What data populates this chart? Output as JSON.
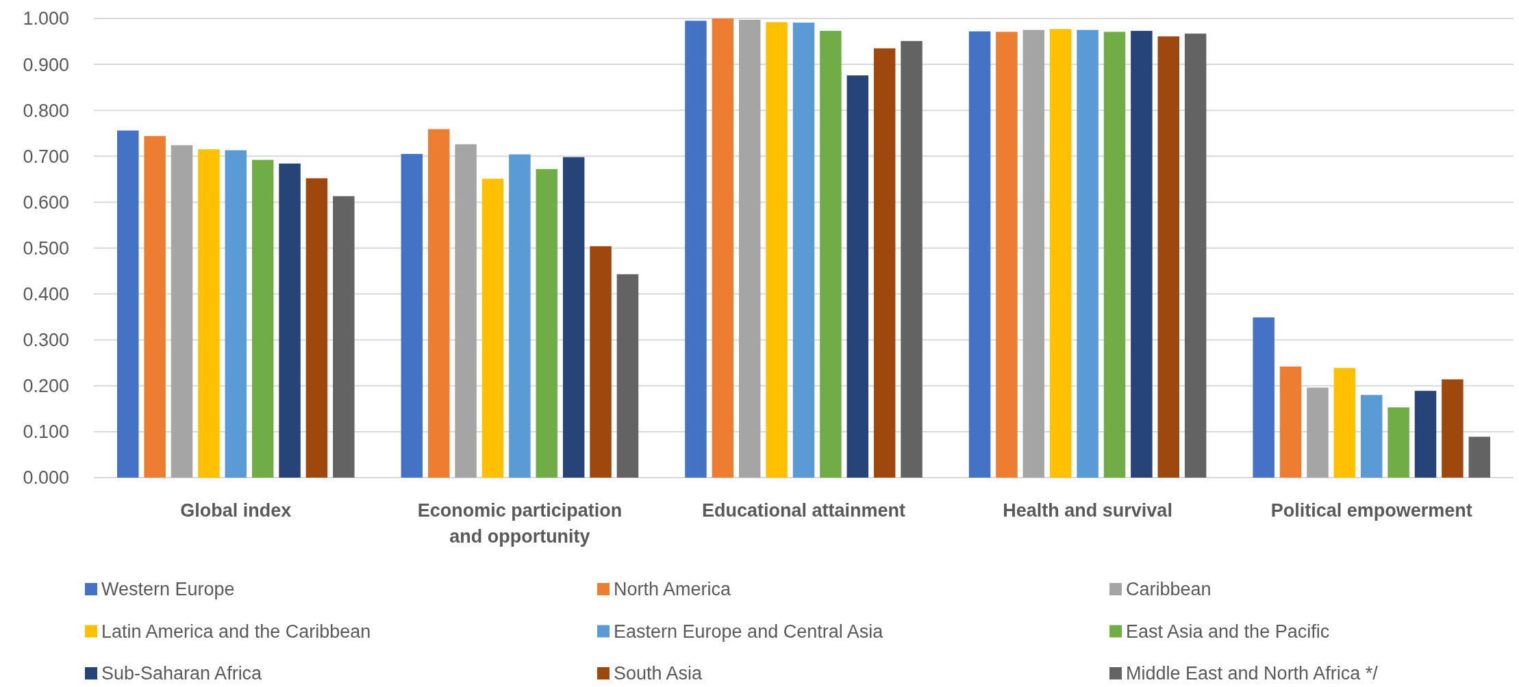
{
  "chart_data": {
    "type": "bar",
    "categories": [
      "Global index",
      "Economic participation and opportunity",
      "Educational attainment",
      "Health and survival",
      "Political empowerment"
    ],
    "series": [
      {
        "name": "Western Europe",
        "color": "#4472c4",
        "values": [
          0.756,
          0.705,
          0.995,
          0.972,
          0.349
        ]
      },
      {
        "name": "North America",
        "color": "#ed7d31",
        "values": [
          0.744,
          0.759,
          1.0,
          0.971,
          0.242
        ]
      },
      {
        "name": "Caribbean",
        "color": "#a5a5a5",
        "values": [
          0.724,
          0.726,
          0.997,
          0.975,
          0.196
        ]
      },
      {
        "name": "Latin America and the Caribbean",
        "color": "#ffc000",
        "values": [
          0.715,
          0.651,
          0.992,
          0.977,
          0.239
        ]
      },
      {
        "name": "Eastern Europe and Central Asia",
        "color": "#5b9bd5",
        "values": [
          0.713,
          0.704,
          0.991,
          0.975,
          0.18
        ]
      },
      {
        "name": "East Asia and the Pacific",
        "color": "#70ad47",
        "values": [
          0.692,
          0.672,
          0.973,
          0.971,
          0.153
        ]
      },
      {
        "name": "Sub-Saharan Africa",
        "color": "#264478",
        "values": [
          0.684,
          0.698,
          0.876,
          0.973,
          0.189
        ]
      },
      {
        "name": "South Asia",
        "color": "#9e480e",
        "values": [
          0.652,
          0.504,
          0.935,
          0.961,
          0.214
        ]
      },
      {
        "name": "Middle East and North Africa */",
        "color": "#636363",
        "values": [
          0.613,
          0.443,
          0.951,
          0.967,
          0.089
        ]
      }
    ],
    "ylim": [
      0,
      1
    ],
    "yticks": [
      {
        "value": 0,
        "label": "0.000"
      },
      {
        "value": 0.1,
        "label": "0.100"
      },
      {
        "value": 0.2,
        "label": "0.200"
      },
      {
        "value": 0.3,
        "label": "0.300"
      },
      {
        "value": 0.4,
        "label": "0.400"
      },
      {
        "value": 0.5,
        "label": "0.500"
      },
      {
        "value": 0.6,
        "label": "0.600"
      },
      {
        "value": 0.7,
        "label": "0.700"
      },
      {
        "value": 0.8,
        "label": "0.800"
      },
      {
        "value": 0.9,
        "label": "0.900"
      },
      {
        "value": 1,
        "label": "1.000"
      }
    ],
    "grid": "y",
    "legend": "bottom"
  }
}
